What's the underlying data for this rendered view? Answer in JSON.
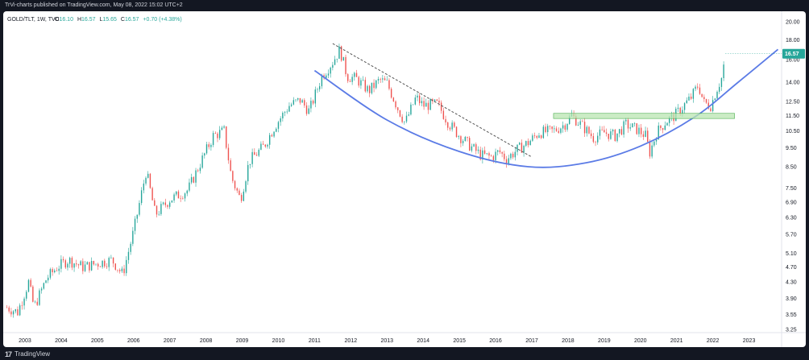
{
  "header": {
    "caption": "TrVi-charts published on TradingView.com, May 08, 2022 15:02 UTC+2"
  },
  "legend": {
    "symbol": "GOLD/TLT, 1W, TVC",
    "o_label": "O",
    "o_value": "16.10",
    "h_label": "H",
    "h_value": "16.57",
    "l_label": "L",
    "l_value": "15.65",
    "c_label": "C",
    "c_value": "16.57",
    "change": "+0.70 (+4.38%)"
  },
  "footer": {
    "logo_mark": "17",
    "logo_text": "TradingView"
  },
  "chart_data": {
    "type": "candlestick",
    "y_scale": "log",
    "ylim": [
      3.25,
      20.5
    ],
    "xlim": [
      2002.4,
      2023.9
    ],
    "y_ticks": [
      "20.00",
      "18.00",
      "16.00",
      "14.00",
      "12.50",
      "11.50",
      "10.50",
      "9.50",
      "8.50",
      "7.50",
      "6.90",
      "6.30",
      "5.70",
      "5.10",
      "4.70",
      "4.30",
      "3.90",
      "3.55",
      "3.25"
    ],
    "x_ticks": [
      "2003",
      "2004",
      "2005",
      "2006",
      "2007",
      "2008",
      "2009",
      "2010",
      "2011",
      "2012",
      "2013",
      "2014",
      "2015",
      "2016",
      "2017",
      "2018",
      "2019",
      "2020",
      "2021",
      "2022",
      "2023"
    ],
    "last_price": "16.57",
    "price_path": [
      [
        2002.5,
        3.7
      ],
      [
        2002.8,
        3.6
      ],
      [
        2003.1,
        4.3
      ],
      [
        2003.25,
        3.7
      ],
      [
        2003.6,
        4.4
      ],
      [
        2003.9,
        4.7
      ],
      [
        2004.2,
        4.9
      ],
      [
        2004.6,
        4.7
      ],
      [
        2005.0,
        4.8
      ],
      [
        2005.4,
        4.9
      ],
      [
        2005.7,
        4.5
      ],
      [
        2006.0,
        5.8
      ],
      [
        2006.35,
        8.3
      ],
      [
        2006.6,
        6.4
      ],
      [
        2007.0,
        7.0
      ],
      [
        2007.5,
        7.4
      ],
      [
        2007.9,
        8.9
      ],
      [
        2008.2,
        10.2
      ],
      [
        2008.5,
        10.5
      ],
      [
        2008.7,
        8.0
      ],
      [
        2008.95,
        7.0
      ],
      [
        2009.2,
        8.8
      ],
      [
        2009.6,
        9.6
      ],
      [
        2009.9,
        10.8
      ],
      [
        2010.3,
        12.2
      ],
      [
        2010.6,
        12.6
      ],
      [
        2010.85,
        11.8
      ],
      [
        2011.2,
        14.5
      ],
      [
        2011.5,
        15.8
      ],
      [
        2011.7,
        17.0
      ],
      [
        2011.9,
        14.5
      ],
      [
        2012.15,
        14.3
      ],
      [
        2012.5,
        13.3
      ],
      [
        2012.8,
        14.2
      ],
      [
        2013.0,
        13.9
      ],
      [
        2013.3,
        12.0
      ],
      [
        2013.5,
        11.0
      ],
      [
        2013.8,
        12.8
      ],
      [
        2014.0,
        12.2
      ],
      [
        2014.4,
        12.3
      ],
      [
        2014.7,
        11.0
      ],
      [
        2015.0,
        10.2
      ],
      [
        2015.3,
        9.6
      ],
      [
        2015.6,
        9.1
      ],
      [
        2015.9,
        9.0
      ],
      [
        2016.1,
        9.3
      ],
      [
        2016.3,
        8.9
      ],
      [
        2016.6,
        9.4
      ],
      [
        2016.9,
        9.8
      ],
      [
        2017.2,
        10.4
      ],
      [
        2017.6,
        10.5
      ],
      [
        2017.9,
        10.9
      ],
      [
        2018.1,
        11.5
      ],
      [
        2018.4,
        10.8
      ],
      [
        2018.7,
        10.1
      ],
      [
        2019.0,
        10.4
      ],
      [
        2019.3,
        10.2
      ],
      [
        2019.6,
        10.9
      ],
      [
        2019.9,
        10.6
      ],
      [
        2020.15,
        10.2
      ],
      [
        2020.25,
        9.2
      ],
      [
        2020.45,
        10.4
      ],
      [
        2020.7,
        11.1
      ],
      [
        2020.95,
        11.5
      ],
      [
        2021.2,
        12.2
      ],
      [
        2021.4,
        12.8
      ],
      [
        2021.6,
        13.8
      ],
      [
        2021.75,
        12.4
      ],
      [
        2021.95,
        12.2
      ],
      [
        2022.1,
        13.4
      ],
      [
        2022.25,
        14.4
      ],
      [
        2022.35,
        16.57
      ]
    ],
    "annotations": [
      {
        "type": "arc",
        "name": "rounding bottom curve",
        "color": "#5b7be6",
        "points": [
          [
            2011.0,
            15.0
          ],
          [
            2013.0,
            11.2
          ],
          [
            2015.0,
            9.3
          ],
          [
            2016.9,
            8.5
          ],
          [
            2018.5,
            8.7
          ],
          [
            2020.0,
            9.6
          ],
          [
            2021.5,
            11.4
          ],
          [
            2022.7,
            14.0
          ],
          [
            2023.8,
            17.0
          ]
        ]
      },
      {
        "type": "trendline",
        "name": "descending dashed trendline",
        "style": "dashed",
        "color": "#555555",
        "from": [
          2011.5,
          17.6
        ],
        "to": [
          2017.0,
          9.0
        ]
      },
      {
        "type": "zone",
        "name": "horizontal support zone",
        "color": "#b9e6b2",
        "x_from": 2017.6,
        "x_to": 2022.6,
        "y_low": 11.3,
        "y_high": 11.65
      }
    ],
    "up_color": "#26a69a",
    "down_color": "#ef5350",
    "grid": false
  }
}
